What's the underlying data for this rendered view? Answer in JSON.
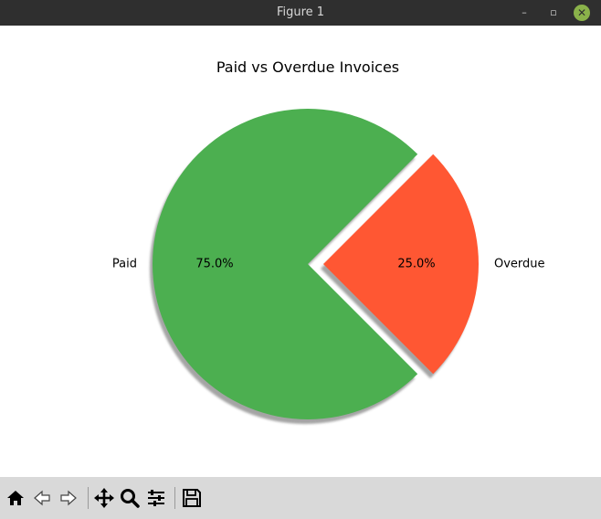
{
  "window": {
    "title": "Figure 1",
    "buttons": {
      "minimize": "–",
      "maximize": "▫",
      "close": "✕"
    }
  },
  "toolbar": {
    "tools": [
      "home-icon",
      "back-icon",
      "forward-icon",
      "pan-icon",
      "zoom-icon",
      "configure-subplots-icon",
      "save-icon"
    ]
  },
  "chart_data": {
    "type": "pie",
    "title": "Paid vs Overdue Invoices",
    "slices": [
      {
        "label": "Paid",
        "value": 75.0,
        "pct_label": "75.0%",
        "color": "#4caf50",
        "exploded": false
      },
      {
        "label": "Overdue",
        "value": 25.0,
        "pct_label": "25.0%",
        "color": "#ff5733",
        "exploded": true
      }
    ],
    "shadow": true,
    "start_angle_deg": 45
  }
}
